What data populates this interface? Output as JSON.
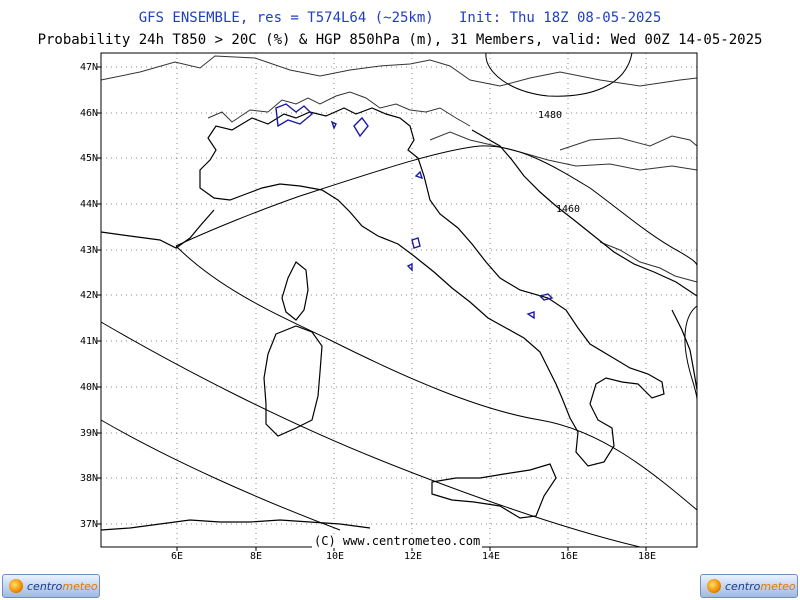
{
  "header": {
    "model_line": "GFS ENSEMBLE, res = T574L64 (~25km)   Init: Thu 18Z 08-05-2025",
    "product_line": "Probability 24h T850 > 20C (%) & HGP 850hPa (m), 31 Members, valid: Wed 00Z 14-05-2025"
  },
  "map": {
    "lat_labels": [
      "47N",
      "46N",
      "45N",
      "44N",
      "43N",
      "42N",
      "41N",
      "40N",
      "39N",
      "38N",
      "37N"
    ],
    "lon_labels": [
      "6E",
      "8E",
      "10E",
      "12E",
      "14E",
      "16E",
      "18E"
    ],
    "contour_labels": [
      "1480",
      "1460"
    ],
    "credit": "(C) www.centrometeo.com",
    "colors": {
      "coast": "#000000",
      "borders": "#333333",
      "contours": "#000000",
      "probability": "#1a1aa0",
      "grid": "#888888"
    }
  },
  "footer": {
    "logo_left": {
      "part1": "centro",
      "part2": "meteo"
    },
    "logo_right": {
      "part1": "centro",
      "part2": "meteo"
    }
  }
}
